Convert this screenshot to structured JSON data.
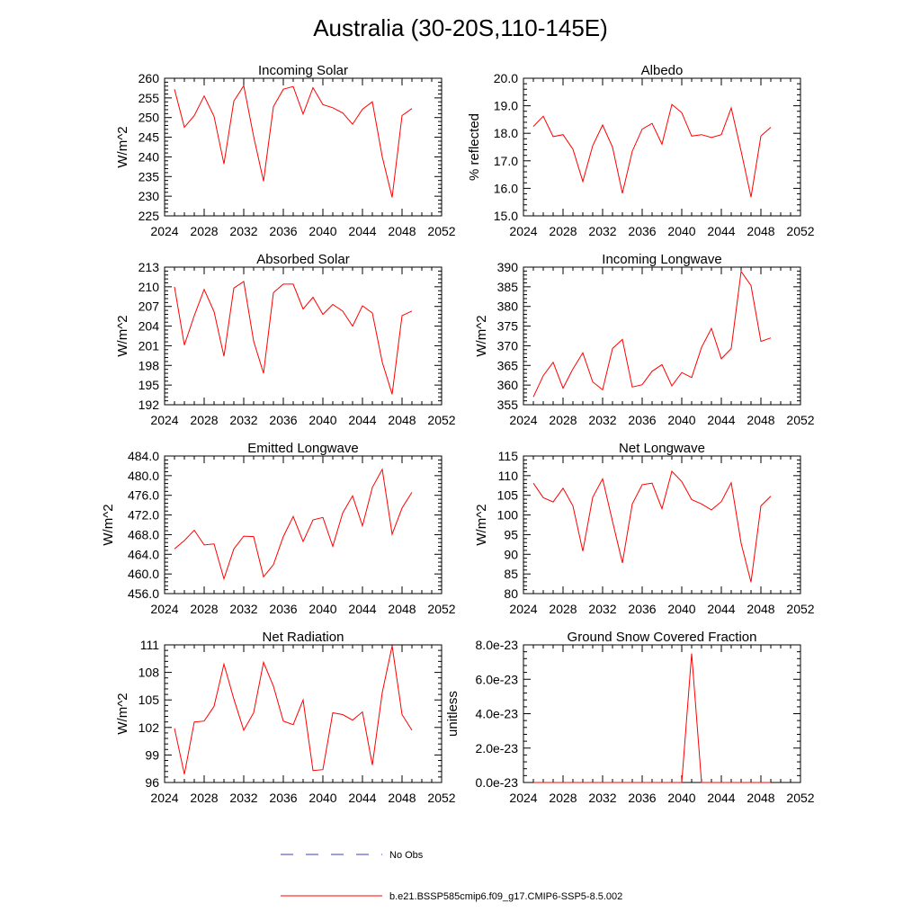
{
  "title": "Australia (30-20S,110-145E)",
  "legend": {
    "obs_label": "No Obs",
    "model_label": "b.e21.BSSP585cmip6.f09_g17.CMIP6-SSP5-8.5.002",
    "obs_color": "#3b3bbf",
    "model_color": "#ff0000"
  },
  "chart_data": [
    {
      "type": "line",
      "title": "Incoming Solar",
      "ylabel": "W/m^2",
      "xlim": [
        2024,
        2052
      ],
      "ylim": [
        225,
        260
      ],
      "yticks": [
        "225",
        "230",
        "235",
        "240",
        "245",
        "250",
        "255",
        "260"
      ],
      "xticks": [
        "2024",
        "2028",
        "2032",
        "2036",
        "2040",
        "2044",
        "2048",
        "2052"
      ],
      "x": [
        2025,
        2026,
        2027,
        2028,
        2029,
        2030,
        2031,
        2032,
        2033,
        2034,
        2035,
        2036,
        2037,
        2038,
        2039,
        2040,
        2041,
        2042,
        2043,
        2044,
        2045,
        2046,
        2047,
        2048,
        2049
      ],
      "series": [
        {
          "values": [
            257.2,
            247.5,
            250.5,
            255.5,
            250.3,
            238.2,
            254.2,
            258.1,
            245.2,
            233.8,
            252.8,
            257.2,
            257.9,
            250.9,
            257.6,
            253.3,
            252.5,
            251.2,
            248.3,
            252.1,
            254.0,
            240.0,
            229.7,
            250.5,
            252.3
          ]
        }
      ]
    },
    {
      "type": "line",
      "title": "Albedo",
      "ylabel": "% reflected",
      "xlim": [
        2024,
        2052
      ],
      "ylim": [
        15,
        20
      ],
      "yticks": [
        "15.0",
        "16.0",
        "17.0",
        "18.0",
        "19.0",
        "20.0"
      ],
      "xticks": [
        "2024",
        "2028",
        "2032",
        "2036",
        "2040",
        "2044",
        "2048",
        "2052"
      ],
      "x": [
        2025,
        2026,
        2027,
        2028,
        2029,
        2030,
        2031,
        2032,
        2033,
        2034,
        2035,
        2036,
        2037,
        2038,
        2039,
        2040,
        2041,
        2042,
        2043,
        2044,
        2045,
        2046,
        2047,
        2048,
        2049
      ],
      "series": [
        {
          "values": [
            18.25,
            18.62,
            17.88,
            17.95,
            17.42,
            16.25,
            17.55,
            18.3,
            17.5,
            15.82,
            17.35,
            18.15,
            18.36,
            17.6,
            19.05,
            18.75,
            17.9,
            17.95,
            17.85,
            17.95,
            18.92,
            17.35,
            15.68,
            17.9,
            18.22
          ]
        }
      ]
    },
    {
      "type": "line",
      "title": "Absorbed Solar",
      "ylabel": "W/m^2",
      "xlim": [
        2024,
        2052
      ],
      "ylim": [
        192,
        213
      ],
      "yticks": [
        "192",
        "195",
        "198",
        "201",
        "204",
        "207",
        "210",
        "213"
      ],
      "xticks": [
        "2024",
        "2028",
        "2032",
        "2036",
        "2040",
        "2044",
        "2048",
        "2052"
      ],
      "x": [
        2025,
        2026,
        2027,
        2028,
        2029,
        2030,
        2031,
        2032,
        2033,
        2034,
        2035,
        2036,
        2037,
        2038,
        2039,
        2040,
        2041,
        2042,
        2043,
        2044,
        2045,
        2046,
        2047,
        2048,
        2049
      ],
      "series": [
        {
          "values": [
            210.0,
            201.1,
            205.6,
            209.6,
            206.2,
            199.4,
            209.8,
            210.8,
            201.7,
            196.8,
            209.1,
            210.4,
            210.4,
            206.6,
            208.4,
            205.8,
            207.3,
            206.3,
            204.0,
            207.1,
            206.0,
            198.5,
            193.6,
            205.6,
            206.3
          ]
        }
      ]
    },
    {
      "type": "line",
      "title": "Incoming Longwave",
      "ylabel": "W/m^2",
      "xlim": [
        2024,
        2052
      ],
      "ylim": [
        355,
        390
      ],
      "yticks": [
        "355",
        "360",
        "365",
        "370",
        "375",
        "380",
        "385",
        "390"
      ],
      "xticks": [
        "2024",
        "2028",
        "2032",
        "2036",
        "2040",
        "2044",
        "2048",
        "2052"
      ],
      "x": [
        2025,
        2026,
        2027,
        2028,
        2029,
        2030,
        2031,
        2032,
        2033,
        2034,
        2035,
        2036,
        2037,
        2038,
        2039,
        2040,
        2041,
        2042,
        2043,
        2044,
        2045,
        2046,
        2047,
        2048,
        2049
      ],
      "series": [
        {
          "values": [
            357.0,
            362.4,
            365.8,
            359.2,
            364.1,
            368.2,
            360.8,
            358.8,
            369.3,
            371.6,
            359.5,
            360.1,
            363.5,
            365.2,
            359.8,
            363.2,
            361.9,
            369.6,
            374.4,
            366.7,
            369.3,
            388.9,
            385.3,
            371.1,
            372.0
          ]
        }
      ]
    },
    {
      "type": "line",
      "title": "Emitted Longwave",
      "ylabel": "W/m^2",
      "xlim": [
        2024,
        2052
      ],
      "ylim": [
        456,
        484
      ],
      "yticks": [
        "456.0",
        "460.0",
        "464.0",
        "468.0",
        "472.0",
        "476.0",
        "480.0",
        "484.0"
      ],
      "xticks": [
        "2024",
        "2028",
        "2032",
        "2036",
        "2040",
        "2044",
        "2048",
        "2052"
      ],
      "x": [
        2025,
        2026,
        2027,
        2028,
        2029,
        2030,
        2031,
        2032,
        2033,
        2034,
        2035,
        2036,
        2037,
        2038,
        2039,
        2040,
        2041,
        2042,
        2043,
        2044,
        2045,
        2046,
        2047,
        2048,
        2049
      ],
      "series": [
        {
          "values": [
            465.1,
            466.8,
            468.9,
            465.9,
            466.1,
            459.0,
            465.1,
            467.7,
            467.6,
            459.4,
            461.9,
            467.6,
            471.7,
            466.6,
            471.0,
            471.5,
            465.6,
            472.4,
            475.9,
            469.8,
            477.6,
            481.3,
            468.1,
            473.4,
            476.6
          ]
        }
      ]
    },
    {
      "type": "line",
      "title": "Net Longwave",
      "ylabel": "W/m^2",
      "xlim": [
        2024,
        2052
      ],
      "ylim": [
        80,
        115
      ],
      "yticks": [
        "80",
        "85",
        "90",
        "95",
        "100",
        "105",
        "110",
        "115"
      ],
      "xticks": [
        "2024",
        "2028",
        "2032",
        "2036",
        "2040",
        "2044",
        "2048",
        "2052"
      ],
      "x": [
        2025,
        2026,
        2027,
        2028,
        2029,
        2030,
        2031,
        2032,
        2033,
        2034,
        2035,
        2036,
        2037,
        2038,
        2039,
        2040,
        2041,
        2042,
        2043,
        2044,
        2045,
        2046,
        2047,
        2048,
        2049
      ],
      "series": [
        {
          "values": [
            108.1,
            104.4,
            103.3,
            106.8,
            102.3,
            90.8,
            104.5,
            109.2,
            98.4,
            87.8,
            102.8,
            107.7,
            108.1,
            101.6,
            111.1,
            108.5,
            103.9,
            102.8,
            101.3,
            103.4,
            108.2,
            92.8,
            82.9,
            102.3,
            104.8
          ]
        }
      ]
    },
    {
      "type": "line",
      "title": "Net Radiation",
      "ylabel": "W/m^2",
      "xlim": [
        2024,
        2052
      ],
      "ylim": [
        96,
        111
      ],
      "yticks": [
        "96",
        "99",
        "102",
        "105",
        "108",
        "111"
      ],
      "xticks": [
        "2024",
        "2028",
        "2032",
        "2036",
        "2040",
        "2044",
        "2048",
        "2052"
      ],
      "x": [
        2025,
        2026,
        2027,
        2028,
        2029,
        2030,
        2031,
        2032,
        2033,
        2034,
        2035,
        2036,
        2037,
        2038,
        2039,
        2040,
        2041,
        2042,
        2043,
        2044,
        2045,
        2046,
        2047,
        2048,
        2049
      ],
      "series": [
        {
          "values": [
            101.9,
            96.9,
            102.6,
            102.7,
            104.3,
            108.9,
            105.1,
            101.7,
            103.6,
            109.1,
            106.5,
            102.7,
            102.3,
            105.0,
            97.3,
            97.4,
            103.6,
            103.4,
            102.8,
            103.7,
            97.9,
            105.8,
            110.9,
            103.4,
            101.7
          ]
        }
      ]
    },
    {
      "type": "line",
      "title": "Ground Snow Covered Fraction",
      "ylabel": "unitless",
      "xlim": [
        2024,
        2052
      ],
      "ylim": [
        0,
        8e-23
      ],
      "yticks": [
        "0.0e-23",
        "2.0e-23",
        "4.0e-23",
        "6.0e-23",
        "8.0e-23"
      ],
      "xticks": [
        "2024",
        "2028",
        "2032",
        "2036",
        "2040",
        "2044",
        "2048",
        "2052"
      ],
      "x": [
        2025,
        2026,
        2027,
        2028,
        2029,
        2030,
        2031,
        2032,
        2033,
        2034,
        2035,
        2036,
        2037,
        2038,
        2039,
        2040,
        2041,
        2042,
        2043,
        2044,
        2045,
        2046,
        2047,
        2048,
        2049
      ],
      "series": [
        {
          "values": [
            0,
            0,
            0,
            0,
            0,
            0,
            0,
            0,
            0,
            0,
            0,
            0,
            0,
            0,
            0,
            0,
            7.5e-23,
            0,
            0,
            0,
            0,
            0,
            0,
            0,
            0
          ]
        }
      ]
    }
  ]
}
